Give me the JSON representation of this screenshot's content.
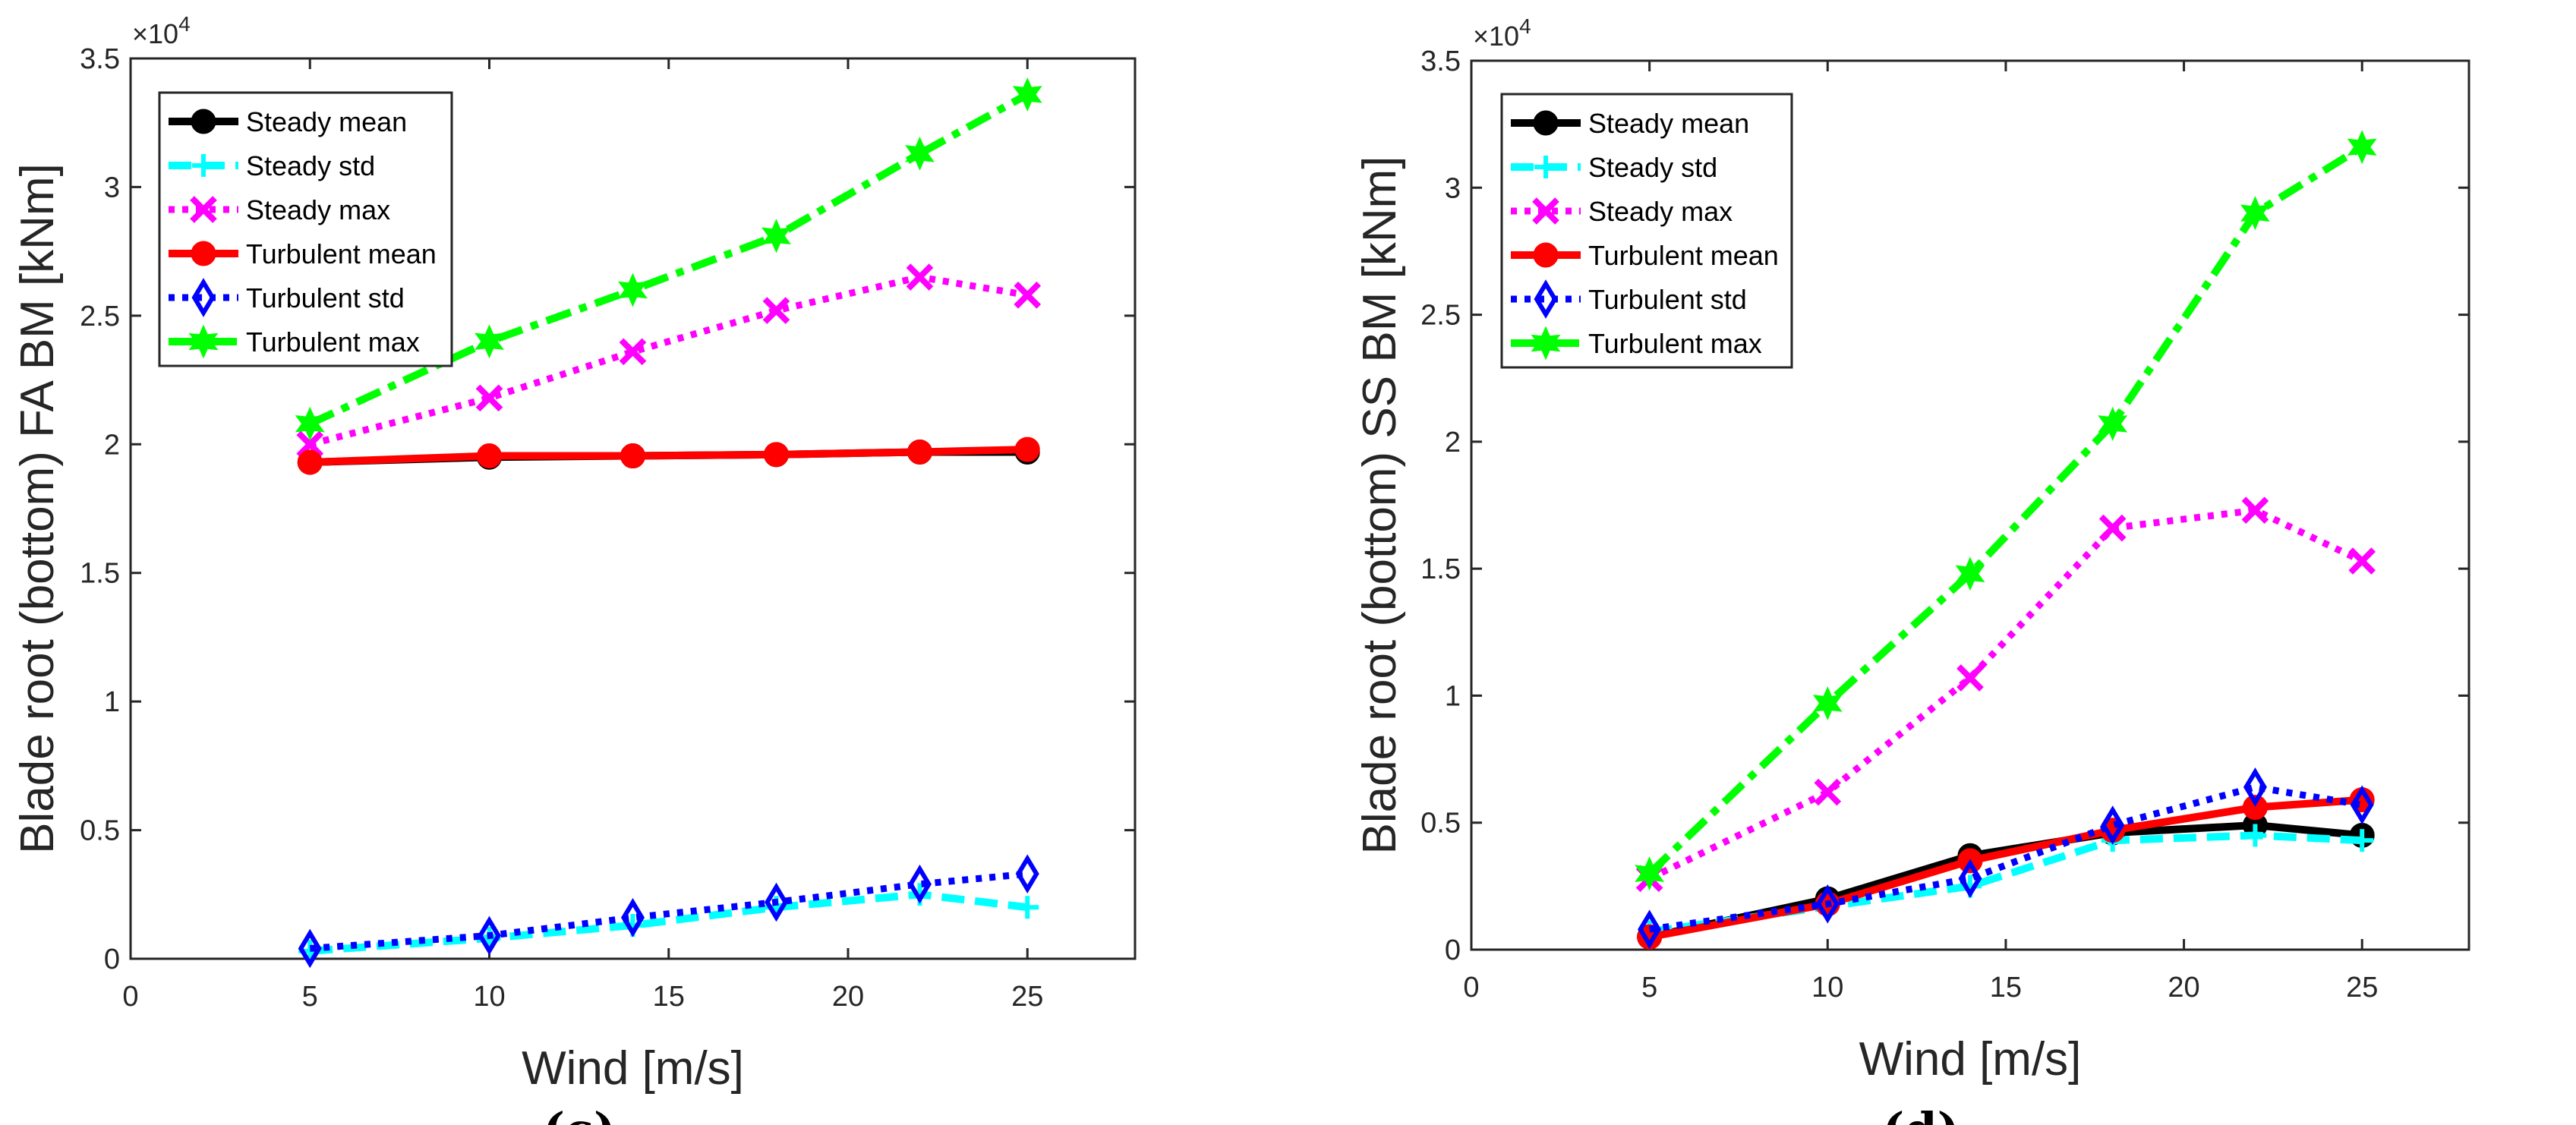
{
  "chart_data": [
    {
      "type": "line",
      "panel_label": "(c)",
      "xlabel": "Wind [m/s]",
      "ylabel": "Blade root (bottom) FA BM [kNm]",
      "y_exponent_label": "×10",
      "y_exponent": "4",
      "xlim": [
        0,
        28
      ],
      "ylim": [
        0,
        3.5
      ],
      "xticks": [
        "0",
        "5",
        "10",
        "15",
        "20",
        "25"
      ],
      "yticks": [
        "0",
        "0.5",
        "1",
        "1.5",
        "2",
        "2.5",
        "3",
        "3.5"
      ],
      "legend_position": "top-left",
      "x": [
        5,
        10,
        14,
        18,
        22,
        25
      ],
      "series": [
        {
          "name": "Steady mean",
          "color": "#000000",
          "style": "solid",
          "marker": "circle",
          "values": [
            1.93,
            1.95,
            1.955,
            1.96,
            1.97,
            1.97
          ]
        },
        {
          "name": "Steady std",
          "color": "#00FFFF",
          "style": "dashed",
          "marker": "plus",
          "values": [
            0.03,
            0.08,
            0.13,
            0.2,
            0.25,
            0.2
          ]
        },
        {
          "name": "Steady max",
          "color": "#FF00FF",
          "style": "dotted",
          "marker": "x",
          "values": [
            2.0,
            2.18,
            2.36,
            2.52,
            2.65,
            2.58
          ]
        },
        {
          "name": "Turbulent mean",
          "color": "#FF0000",
          "style": "solid",
          "marker": "circle",
          "values": [
            1.93,
            1.955,
            1.955,
            1.96,
            1.97,
            1.98
          ]
        },
        {
          "name": "Turbulent std",
          "color": "#0000FF",
          "style": "dotted",
          "marker": "diamond",
          "values": [
            0.04,
            0.09,
            0.16,
            0.22,
            0.29,
            0.33
          ]
        },
        {
          "name": "Turbulent max",
          "color": "#00FF00",
          "style": "dashdot",
          "marker": "star",
          "values": [
            2.08,
            2.4,
            2.6,
            2.81,
            3.13,
            3.36
          ]
        }
      ]
    },
    {
      "type": "line",
      "panel_label": "(d)",
      "xlabel": "Wind [m/s]",
      "ylabel": "Blade root (bottom) SS BM [kNm]",
      "y_exponent_label": "×10",
      "y_exponent": "4",
      "xlim": [
        0,
        28
      ],
      "ylim": [
        0,
        3.5
      ],
      "xticks": [
        "0",
        "5",
        "10",
        "15",
        "20",
        "25"
      ],
      "yticks": [
        "0",
        "0.5",
        "1",
        "1.5",
        "2",
        "2.5",
        "3",
        "3.5"
      ],
      "legend_position": "top-left",
      "x": [
        5,
        10,
        14,
        18,
        22,
        25
      ],
      "series": [
        {
          "name": "Steady mean",
          "color": "#000000",
          "style": "solid",
          "marker": "circle",
          "values": [
            0.05,
            0.2,
            0.37,
            0.46,
            0.49,
            0.45
          ]
        },
        {
          "name": "Steady std",
          "color": "#00FFFF",
          "style": "dashed",
          "marker": "plus",
          "values": [
            0.07,
            0.17,
            0.25,
            0.43,
            0.45,
            0.43
          ]
        },
        {
          "name": "Steady max",
          "color": "#FF00FF",
          "style": "dotted",
          "marker": "x",
          "values": [
            0.28,
            0.62,
            1.07,
            1.66,
            1.73,
            1.53
          ]
        },
        {
          "name": "Turbulent mean",
          "color": "#FF0000",
          "style": "solid",
          "marker": "circle",
          "values": [
            0.05,
            0.18,
            0.35,
            0.47,
            0.56,
            0.59
          ]
        },
        {
          "name": "Turbulent std",
          "color": "#0000FF",
          "style": "dotted",
          "marker": "diamond",
          "values": [
            0.08,
            0.18,
            0.28,
            0.49,
            0.64,
            0.57
          ]
        },
        {
          "name": "Turbulent max",
          "color": "#00FF00",
          "style": "dashdot",
          "marker": "star",
          "values": [
            0.3,
            0.97,
            1.48,
            2.07,
            2.9,
            3.16
          ]
        }
      ]
    }
  ]
}
